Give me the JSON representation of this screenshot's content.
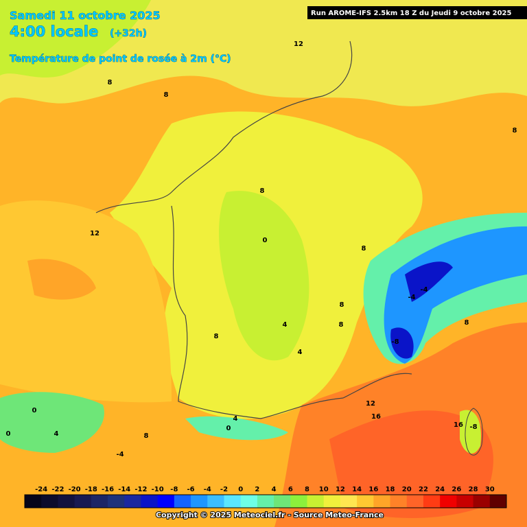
{
  "header": {
    "date": "Samedi 11 octobre 2025",
    "time": "4:00 locale",
    "lead": "(+32h)",
    "variable": "Température de point de rosée à 2m (°C)"
  },
  "run": "Run AROME-IFS 2.5km 18 Z du Jeudi 9 octobre 2025",
  "contour_labels": [
    "12",
    "8",
    "8",
    "12",
    "8",
    "0",
    "4",
    "4",
    "-8",
    "-4",
    "8",
    "12",
    "16",
    "0",
    "4",
    "0",
    "-4",
    "8",
    "4",
    "0",
    "16",
    "-8",
    "8",
    "8",
    "8",
    "8",
    "8",
    "-4"
  ],
  "colorbar": {
    "labels": [
      -24,
      -22,
      -20,
      -18,
      -16,
      -14,
      -12,
      -10,
      -8,
      -6,
      -4,
      -2,
      0,
      2,
      4,
      6,
      8,
      10,
      12,
      14,
      16,
      18,
      20,
      22,
      24,
      26,
      28,
      30
    ],
    "colors": [
      "#06061a",
      "#0c0c2c",
      "#12123e",
      "#181a52",
      "#1c2666",
      "#1e327a",
      "#1a28a0",
      "#0a14c8",
      "#0000ff",
      "#1464ff",
      "#1e96ff",
      "#3cbeff",
      "#5ae6ff",
      "#6effe6",
      "#64f0aa",
      "#6ee678",
      "#8cf03c",
      "#c8f032",
      "#f0f03c",
      "#ffe650",
      "#ffc832",
      "#ffa528",
      "#ff8228",
      "#ff6428",
      "#ff3c14",
      "#f00000",
      "#c80000",
      "#9a0000",
      "#600000"
    ]
  },
  "copyright": "Copyright © 2025 Meteociel.fr - Source Meteo-France"
}
